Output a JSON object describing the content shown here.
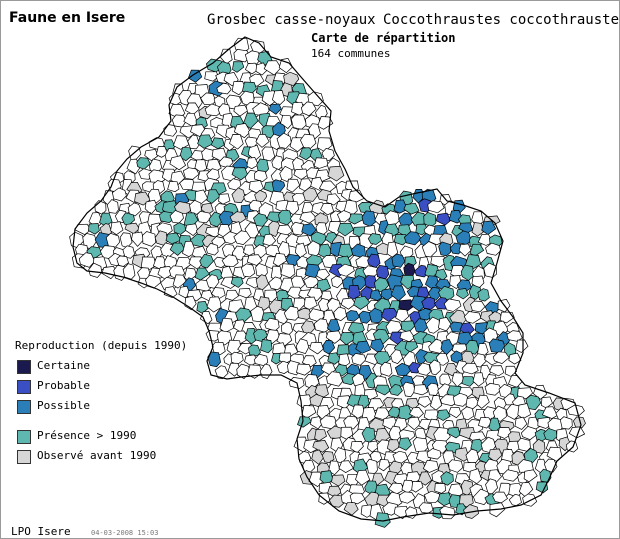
{
  "header": {
    "site_title": "Faune en Isere",
    "species_common": "Grosbec casse-noyaux",
    "species_latin": "Coccothraustes coccothraustes",
    "map_title": "Carte de répartition",
    "communes": "164 communes"
  },
  "legend": {
    "heading": "Reproduction (depuis 1990)",
    "items": [
      {
        "label": "Certaine",
        "color": "#1a1a4e"
      },
      {
        "label": "Probable",
        "color": "#3b4fc4"
      },
      {
        "label": "Possible",
        "color": "#2a7fb8"
      },
      {
        "label": "Présence > 1990",
        "color": "#5fb8b0"
      },
      {
        "label": "Observé avant 1990",
        "color": "#d6d6d6"
      }
    ]
  },
  "footer": {
    "organisation": "LPO Isere",
    "date": "04-03-2008 15:03"
  },
  "colors": {
    "commune_fill": "#ffffff",
    "commune_border": "#000000",
    "frame_border": "#9a9a9a"
  }
}
